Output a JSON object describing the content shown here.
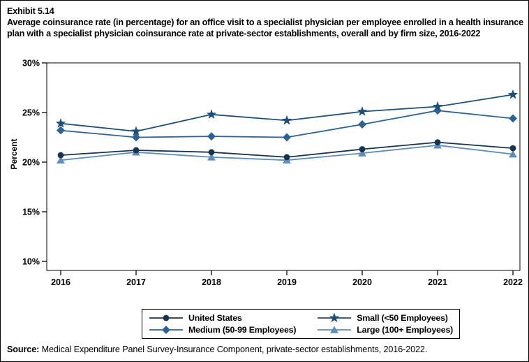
{
  "header": {
    "exhibit_label": "Exhibit 5.14",
    "title": "Average coinsurance rate (in percentage) for an office visit to a specialist physician per employee enrolled in a health insurance plan with a specialist physician coinsurance rate at private-sector establishments, overall and by firm size, 2016-2022"
  },
  "footer": {
    "source_label": "Source:",
    "source_text": " Medical Expenditure Panel Survey-Insurance Component, private-sector establishments, 2016-2022."
  },
  "chart_data": {
    "type": "line",
    "title": "Average coinsurance rate (in percentage) for an office visit to a specialist physician, 2016-2022",
    "xlabel": "",
    "ylabel": "Percent",
    "x": [
      2016,
      2017,
      2018,
      2019,
      2020,
      2021,
      2022
    ],
    "ylim": [
      10,
      30
    ],
    "ytick_values": [
      10,
      15,
      20,
      25,
      30
    ],
    "ytick_labels": [
      "10%",
      "15%",
      "20%",
      "25%",
      "30%"
    ],
    "grid": false,
    "legend_position": "bottom-box",
    "series": [
      {
        "id": "us",
        "name": "United States",
        "marker": "circle",
        "color": "#17344e",
        "values": [
          20.7,
          21.2,
          21.0,
          20.5,
          21.3,
          22.0,
          21.4
        ]
      },
      {
        "id": "small",
        "name": "Small (<50 Employees)",
        "marker": "star",
        "color": "#1f4e79",
        "values": [
          23.9,
          23.1,
          24.8,
          24.2,
          25.1,
          25.6,
          26.8
        ]
      },
      {
        "id": "medium",
        "name": "Medium (50-99 Employees)",
        "marker": "diamond",
        "color": "#2d6394",
        "values": [
          23.2,
          22.5,
          22.6,
          22.5,
          23.8,
          25.2,
          24.4
        ]
      },
      {
        "id": "large",
        "name": "Large (100+ Employees)",
        "marker": "triangle",
        "color": "#5d8db8",
        "values": [
          20.2,
          21.0,
          20.5,
          20.2,
          20.9,
          21.7,
          20.8
        ]
      }
    ]
  }
}
